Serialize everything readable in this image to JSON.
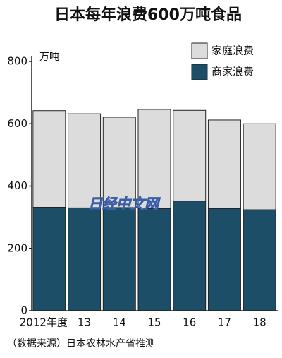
{
  "chart_data": {
    "type": "stacked_bar",
    "title": "日本每年浪费600万吨食品",
    "y_unit": "万吨",
    "categories": [
      "2012年度",
      "13",
      "14",
      "15",
      "16",
      "17",
      "18"
    ],
    "series": [
      {
        "name": "家庭浪费",
        "color": "#dcdcdc",
        "values": [
          310,
          302,
          290,
          318,
          291,
          284,
          276
        ]
      },
      {
        "name": "商家浪费",
        "color": "#1d4e68",
        "values": [
          332,
          330,
          331,
          328,
          352,
          328,
          324
        ]
      }
    ],
    "ylim": [
      0,
      800
    ],
    "yticks": [
      0,
      200,
      400,
      600,
      800
    ],
    "legend": "top-right",
    "source": "（数据来源）日本农林水产省推测",
    "watermark": "日经中文网"
  }
}
